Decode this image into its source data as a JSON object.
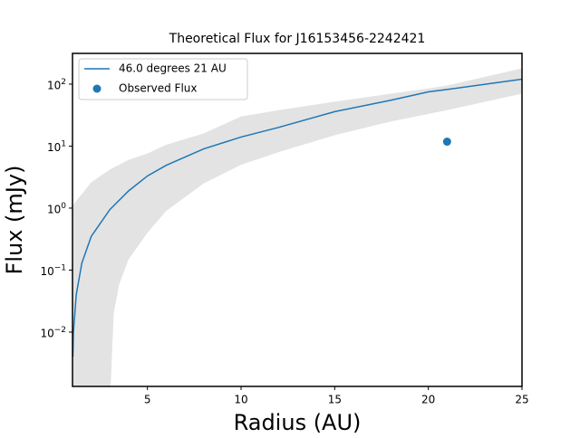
{
  "chart_data": {
    "type": "line",
    "title": "Theoretical Flux for J16153456-2242421",
    "x_label": "Radius (AU)",
    "y_label": "Flux (mJy)",
    "xlim": [
      1,
      25
    ],
    "xticks": [
      5,
      10,
      15,
      20,
      25
    ],
    "ylim": [
      0.00133,
      313
    ],
    "y_scale": "log",
    "yticks": [
      {
        "value": 0.01,
        "label": "10^−2"
      },
      {
        "value": 0.1,
        "label": "10^−1"
      },
      {
        "value": 1,
        "label": "10^0"
      },
      {
        "value": 10,
        "label": "10^1"
      },
      {
        "value": 100,
        "label": "10^2"
      }
    ],
    "legend": "upper left",
    "series": [
      {
        "name": "46.0 degrees 21 AU",
        "color": "#1f77b4",
        "x": [
          1.02,
          1.05,
          1.2,
          1.5,
          2,
          3,
          4,
          5,
          6,
          8,
          10,
          12,
          15,
          18,
          20,
          21,
          25
        ],
        "values": [
          0.004,
          0.01,
          0.04,
          0.13,
          0.35,
          0.95,
          1.9,
          3.3,
          4.9,
          9,
          14,
          20,
          36,
          55,
          75,
          82,
          120
        ]
      }
    ],
    "scatter": {
      "name": "Observed Flux",
      "color": "#1f77b4",
      "x": [
        21
      ],
      "values": [
        11.8
      ]
    },
    "band": {
      "color": "#e3e3e3",
      "x_upper": [
        1,
        2,
        3,
        4,
        5,
        6,
        8,
        10,
        12,
        15,
        18,
        20,
        21,
        25
      ],
      "upper": [
        1.1,
        2.6,
        4.2,
        6,
        7.6,
        10.5,
        16,
        30,
        38,
        52,
        70,
        85,
        95,
        180
      ],
      "x_lower": [
        3.02,
        3.2,
        3.5,
        4,
        5,
        6,
        8,
        10,
        12,
        15,
        18,
        20,
        21,
        25
      ],
      "lower": [
        0.001,
        0.02,
        0.06,
        0.15,
        0.4,
        0.9,
        2.5,
        5,
        8,
        15,
        25,
        33,
        38,
        70
      ]
    }
  }
}
